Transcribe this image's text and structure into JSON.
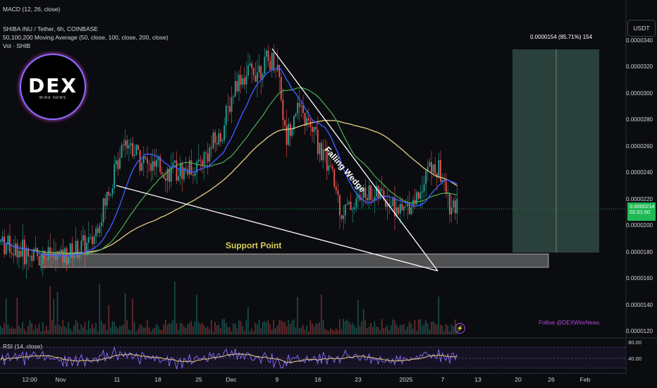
{
  "header": {
    "macd_label": "MACD (12, 26, close)",
    "symbol_line": "SHIBA INU / Tether, 6h, COINBASE",
    "ma_line": "50,100,200 Moving Average (50, close, 100, close, 200, close)",
    "vol_line": "Vol · SHIB",
    "rsi_label": "RSI (14, close)"
  },
  "logo": {
    "main": "DEX",
    "sub": "WIRE NEWS"
  },
  "toolbar": {
    "currency_button": "USDT"
  },
  "current_price": {
    "value": "0.0000214",
    "sub": "02:31:50"
  },
  "target_box": {
    "label": "0.0000154 (85.71%) 154"
  },
  "annotations": {
    "support": "Support Point",
    "wedge": "Falling Wedge",
    "follow": "Follow @DEXWireNews"
  },
  "colors": {
    "up": "#26a69a",
    "down": "#ef5350",
    "ma50": "#3355ff",
    "ma100": "#4caf50",
    "ma200": "#d8c27a",
    "accent_purple": "#9b4dff",
    "green_label": "#1db954"
  },
  "chart_data": {
    "type": "candlestick",
    "symbol": "SHIBA INU / Tether",
    "interval": "6h",
    "exchange": "COINBASE",
    "price_axis": {
      "ticks": [
        "0.0000340",
        "0.0000320",
        "0.0000300",
        "0.0000280",
        "0.0000260",
        "0.0000240",
        "0.0000220",
        "0.0000200",
        "0.0000180",
        "0.0000160",
        "0.0000140",
        "0.0000120"
      ],
      "ylim": [
        1.15e-05,
        3.5e-05
      ]
    },
    "date_axis": [
      "12:00",
      "Nov",
      "11",
      "18",
      "25",
      "Dec",
      "9",
      "16",
      "23",
      "2025",
      "7",
      "13",
      "20",
      "26",
      "Feb"
    ],
    "rsi_axis": [
      "80.00",
      "40.00"
    ],
    "series_anchor_points": [
      [
        "Oct 25",
        1.88e-05
      ],
      [
        "Oct 30",
        1.78e-05
      ],
      [
        "Nov 4",
        1.76e-05
      ],
      [
        "Nov 8",
        1.87e-05
      ],
      [
        "Nov 10",
        2.35e-05
      ],
      [
        "Nov 12",
        2.68e-05
      ],
      [
        "Nov 15",
        2.45e-05
      ],
      [
        "Nov 20",
        2.4e-05
      ],
      [
        "Nov 25",
        2.45e-05
      ],
      [
        "Nov 29",
        2.7e-05
      ],
      [
        "Dec 1",
        3.1e-05
      ],
      [
        "Dec 4",
        3.25e-05
      ],
      [
        "Dec 8",
        3.2e-05
      ],
      [
        "Dec 10",
        2.65e-05
      ],
      [
        "Dec 12",
        2.9e-05
      ],
      [
        "Dec 15",
        2.7e-05
      ],
      [
        "Dec 18",
        2.4e-05
      ],
      [
        "Dec 20",
        2.1e-05
      ],
      [
        "Dec 23",
        2.25e-05
      ],
      [
        "Dec 26",
        2.22e-05
      ],
      [
        "Dec 30",
        2.1e-05
      ],
      [
        "Jan 2",
        2.25e-05
      ],
      [
        "Jan 5",
        2.45e-05
      ],
      [
        "Jan 7",
        2.4e-05
      ],
      [
        "Jan 9",
        2.1e-05
      ],
      [
        "Jan 10",
        2.14e-05
      ]
    ]
  }
}
